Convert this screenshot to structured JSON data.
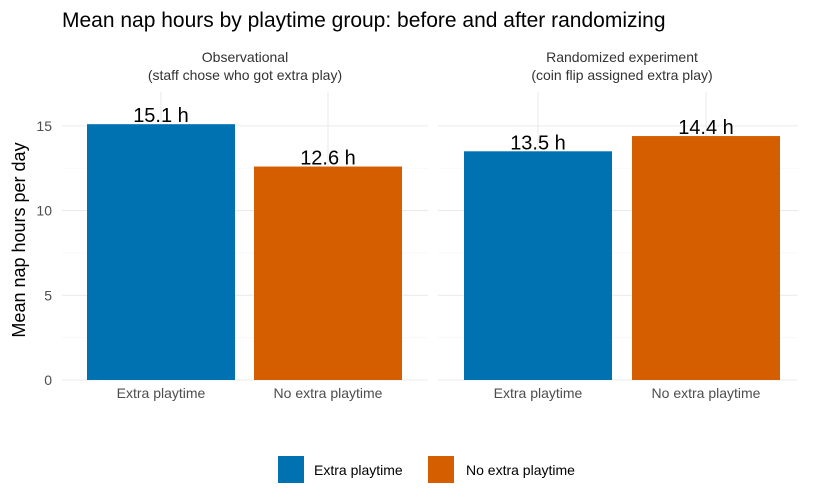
{
  "chart_data": {
    "type": "bar",
    "title": "Mean nap hours by playtime group: before and after randomizing",
    "ylabel": "Mean nap hours per day",
    "xlabel": "",
    "ylim": [
      0,
      17
    ],
    "yticks": [
      0,
      5,
      10,
      15
    ],
    "grid": true,
    "legend_position": "bottom",
    "categories": [
      "Extra playtime",
      "No extra playtime"
    ],
    "colors": {
      "Extra playtime": "#0072B2",
      "No extra playtime": "#D55E00"
    },
    "panels": [
      {
        "title_line1": "Observational",
        "title_line2": "(staff chose who got extra play)",
        "values": [
          15.1,
          12.6
        ],
        "labels": [
          "15.1 h",
          "12.6 h"
        ]
      },
      {
        "title_line1": "Randomized experiment",
        "title_line2": "(coin flip assigned extra play)",
        "values": [
          13.5,
          14.4
        ],
        "labels": [
          "13.5 h",
          "14.4 h"
        ]
      }
    ],
    "legend": [
      {
        "label": "Extra playtime",
        "color": "#0072B2"
      },
      {
        "label": "No extra playtime",
        "color": "#D55E00"
      }
    ]
  }
}
